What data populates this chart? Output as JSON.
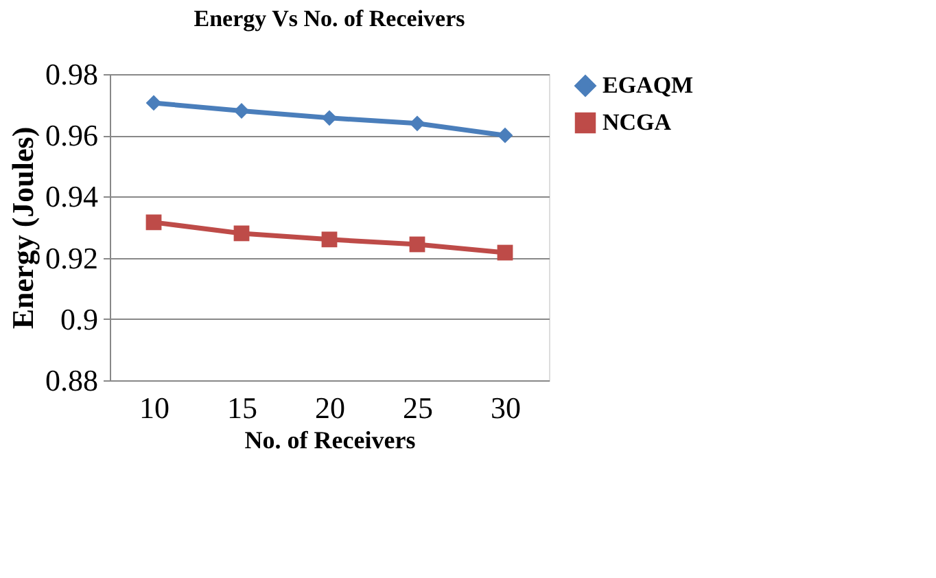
{
  "chart_data": {
    "type": "line",
    "title": "Energy  Vs No. of Receivers",
    "xlabel": "No. of Receivers",
    "ylabel": "Energy (Joules)",
    "categories": [
      "10",
      "15",
      "20",
      "25",
      "30"
    ],
    "series": [
      {
        "name": "EGAQM",
        "color": "#4a7ebb",
        "marker": "diamond",
        "values": [
          0.9706,
          0.968,
          0.9657,
          0.9639,
          0.96
        ]
      },
      {
        "name": "NCGA",
        "color": "#be4b48",
        "marker": "square",
        "values": [
          0.9316,
          0.928,
          0.926,
          0.9244,
          0.9217
        ]
      }
    ],
    "ylim": [
      0.88,
      0.98
    ],
    "yticks": [
      0.88,
      0.9,
      0.92,
      0.94,
      0.96,
      0.98
    ],
    "grid": "y",
    "legend": "right",
    "line_style": "solid"
  }
}
